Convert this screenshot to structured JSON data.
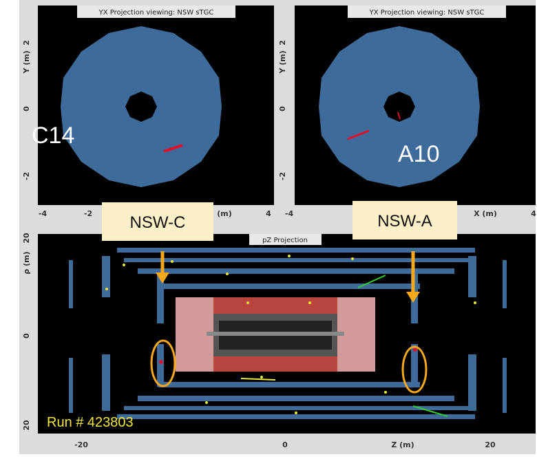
{
  "panels": [
    {
      "title": "YX Projection viewing: NSW sTGC",
      "y_label": "Y (m)",
      "x_label": "(m)",
      "y_ticks": [
        "2",
        "0",
        "-2"
      ],
      "x_ticks": [
        "-4",
        "-2",
        "4"
      ],
      "sector": "C14"
    },
    {
      "title": "YX Projection viewing: NSW sTGC",
      "y_label": "Y (m)",
      "x_label": "X (m)",
      "y_ticks": [
        "2",
        "0",
        "-2"
      ],
      "x_ticks": [
        "-4",
        "4"
      ],
      "sector": "A10"
    }
  ],
  "pz_panel": {
    "title": "pZ Projection",
    "y_label": "ρ (m)",
    "x_label": "Z (m)",
    "y_ticks": [
      "20",
      "0",
      "20"
    ],
    "x_ticks": [
      "-20",
      "0",
      "20"
    ],
    "run": "Run # 423803"
  },
  "callouts": [
    "NSW-C",
    "NSW-A"
  ]
}
